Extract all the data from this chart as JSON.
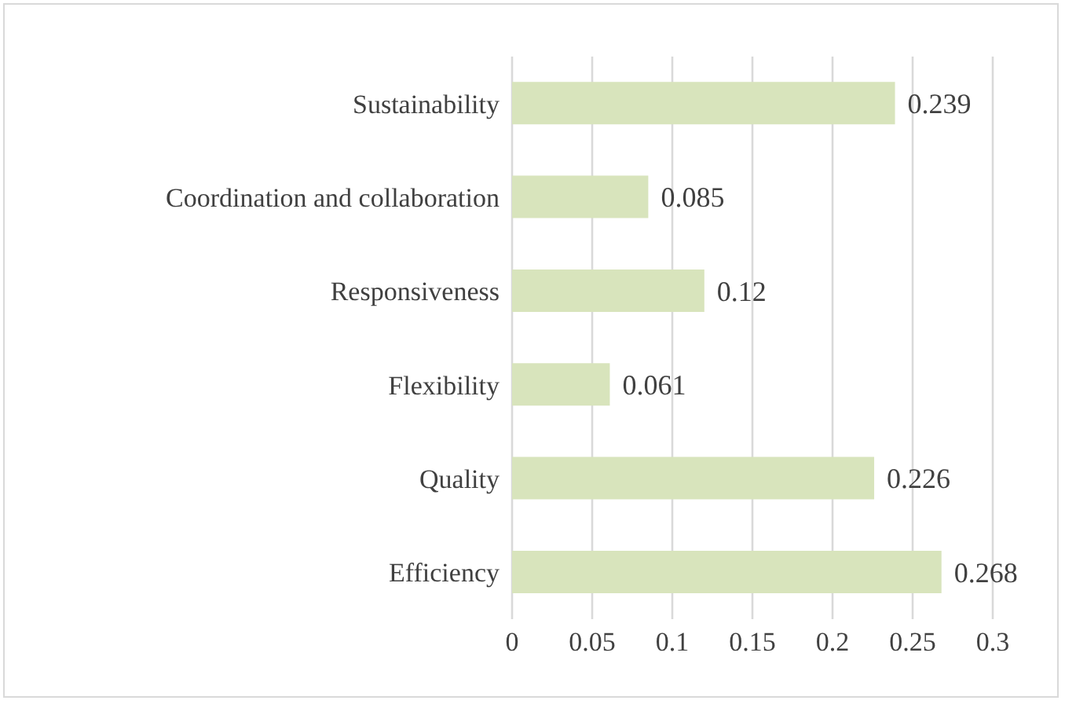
{
  "chart_data": {
    "type": "bar",
    "orientation": "horizontal",
    "categories": [
      "Sustainability",
      "Coordination and collaboration",
      "Responsiveness",
      "Flexibility",
      "Quality",
      "Efficiency"
    ],
    "values": [
      0.239,
      0.085,
      0.12,
      0.061,
      0.226,
      0.268
    ],
    "color": "#d8e4bc",
    "xlim": [
      0,
      0.3
    ],
    "xticks": [
      0,
      0.05,
      0.1,
      0.15,
      0.2,
      0.25,
      0.3
    ],
    "grid": "x",
    "data_labels": true
  }
}
